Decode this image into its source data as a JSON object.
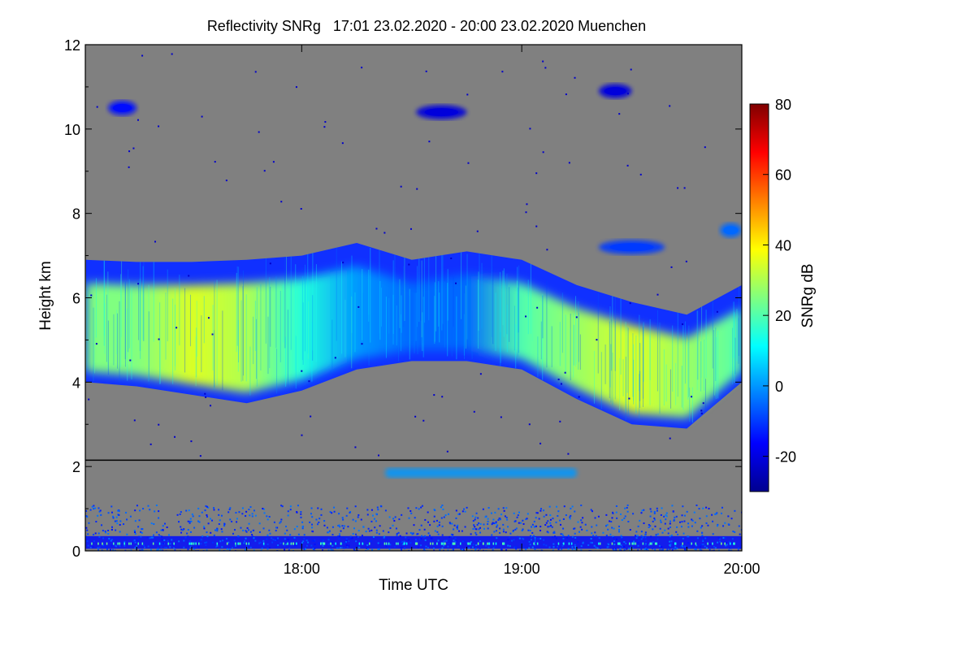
{
  "chart_data": {
    "type": "heatmap",
    "title": "Reflectivity SNRg   17:01 23.02.2020 - 20:00 23.02.2020 Muenchen",
    "xlabel": "Time UTC",
    "ylabel": "Height km",
    "xlim": [
      "17:01",
      "20:00"
    ],
    "ylim": [
      0,
      12
    ],
    "x_ticks": [
      "18:00",
      "19:00",
      "20:00"
    ],
    "y_ticks": [
      "0",
      "2",
      "4",
      "6",
      "8",
      "10",
      "12"
    ],
    "colorbar": {
      "label": "SNRg dB",
      "range": [
        -30,
        80
      ],
      "ticks": [
        "-20",
        "0",
        "20",
        "40",
        "60",
        "80"
      ],
      "colormap": "jet"
    },
    "background_color": "#808080",
    "reference_line_height_km": 2.15,
    "cloud_layer": {
      "time_hours": [
        17.02,
        17.25,
        17.5,
        17.75,
        18.0,
        18.25,
        18.5,
        18.75,
        19.0,
        19.25,
        19.5,
        19.75,
        20.0
      ],
      "top_km": [
        6.9,
        6.85,
        6.85,
        6.9,
        7.0,
        7.3,
        6.9,
        7.1,
        6.9,
        6.3,
        5.9,
        5.6,
        6.3
      ],
      "base_km": [
        4.0,
        3.9,
        3.7,
        3.5,
        3.8,
        4.3,
        4.5,
        4.5,
        4.3,
        3.6,
        3.0,
        2.9,
        4.0
      ],
      "core_snr_db": [
        25,
        25,
        35,
        30,
        15,
        0,
        -5,
        -5,
        20,
        28,
        35,
        28,
        20
      ]
    },
    "upper_patches": [
      {
        "time_start": 18.52,
        "time_end": 18.75,
        "height_km": 10.4,
        "snr_db": -20
      },
      {
        "time_start": 17.12,
        "time_end": 17.25,
        "height_km": 10.5,
        "snr_db": -15
      },
      {
        "time_start": 19.35,
        "time_end": 19.5,
        "height_km": 10.9,
        "snr_db": -20
      },
      {
        "time_start": 19.35,
        "time_end": 19.65,
        "height_km": 7.2,
        "snr_db": -10
      },
      {
        "time_start": 19.9,
        "time_end": 20.0,
        "height_km": 7.6,
        "snr_db": -5
      }
    ],
    "low_layer": {
      "time_start": 18.38,
      "time_end": 19.25,
      "height_km": 1.85,
      "snr_db": 0
    },
    "boundary_layer_clutter": {
      "height_range_km": [
        0,
        1.1
      ],
      "snr_db": -15
    }
  }
}
